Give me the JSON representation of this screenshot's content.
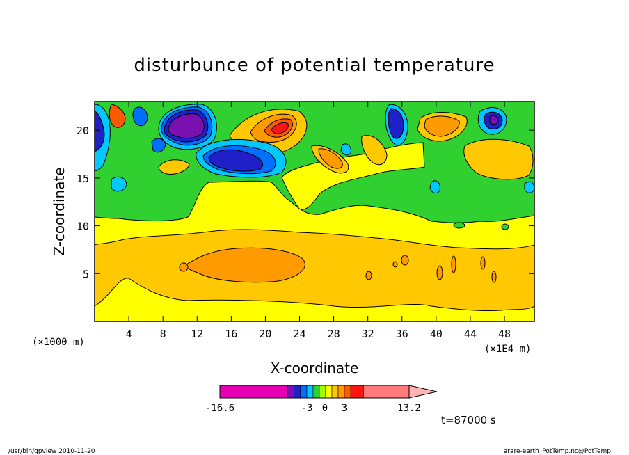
{
  "chart_data": {
    "type": "heatmap",
    "title": "disturbunce of potential temperature",
    "xlabel": "X-coordinate",
    "ylabel": "Z-coordinate",
    "x_unit_left": "(×1000 m)",
    "x_unit_right": "(×1E4 m)",
    "xlim": [
      0,
      51.5
    ],
    "ylim": [
      0,
      23
    ],
    "xticks": [
      4,
      8,
      12,
      16,
      20,
      24,
      28,
      32,
      36,
      40,
      44,
      48
    ],
    "yticks": [
      5,
      10,
      15,
      20
    ],
    "colorbar": {
      "min_label": "-16.6",
      "max_label": "13.2",
      "tick_labels": [
        "-3",
        "0",
        "3"
      ],
      "colors": [
        "#e600b3",
        "#7a10b0",
        "#2020c8",
        "#0070ff",
        "#00c8ff",
        "#30d030",
        "#a0ff00",
        "#ffff00",
        "#ffc800",
        "#ff9b00",
        "#ff5a00",
        "#ff1414",
        "#ff7a7a",
        "#ffb4b4"
      ]
    },
    "time_label": "t=87000 s",
    "layers": [
      {
        "z_range": [
          0,
          2
        ],
        "level": "0 to 1",
        "color": "#ffff00"
      },
      {
        "z_range": [
          2,
          8
        ],
        "level": "1 to 2",
        "color": "#ffc800"
      },
      {
        "z_range": [
          4,
          7.5
        ],
        "x_range": [
          10,
          25
        ],
        "level": "2 to 3",
        "color": "#ff9b00"
      },
      {
        "z_range": [
          8,
          11.5
        ],
        "level": "0 to 1",
        "color": "#ffff00"
      },
      {
        "z_range": [
          11.5,
          16
        ],
        "level": "-1 to 0",
        "color": "#30d030"
      },
      {
        "z_range": [
          16,
          23
        ],
        "level": "mixed",
        "color": "#ff5a00"
      }
    ]
  },
  "footer": {
    "left": "/usr/bin/gpview   2010-11-20",
    "right": "arare-earth_PotTemp.nc@PotTemp"
  }
}
